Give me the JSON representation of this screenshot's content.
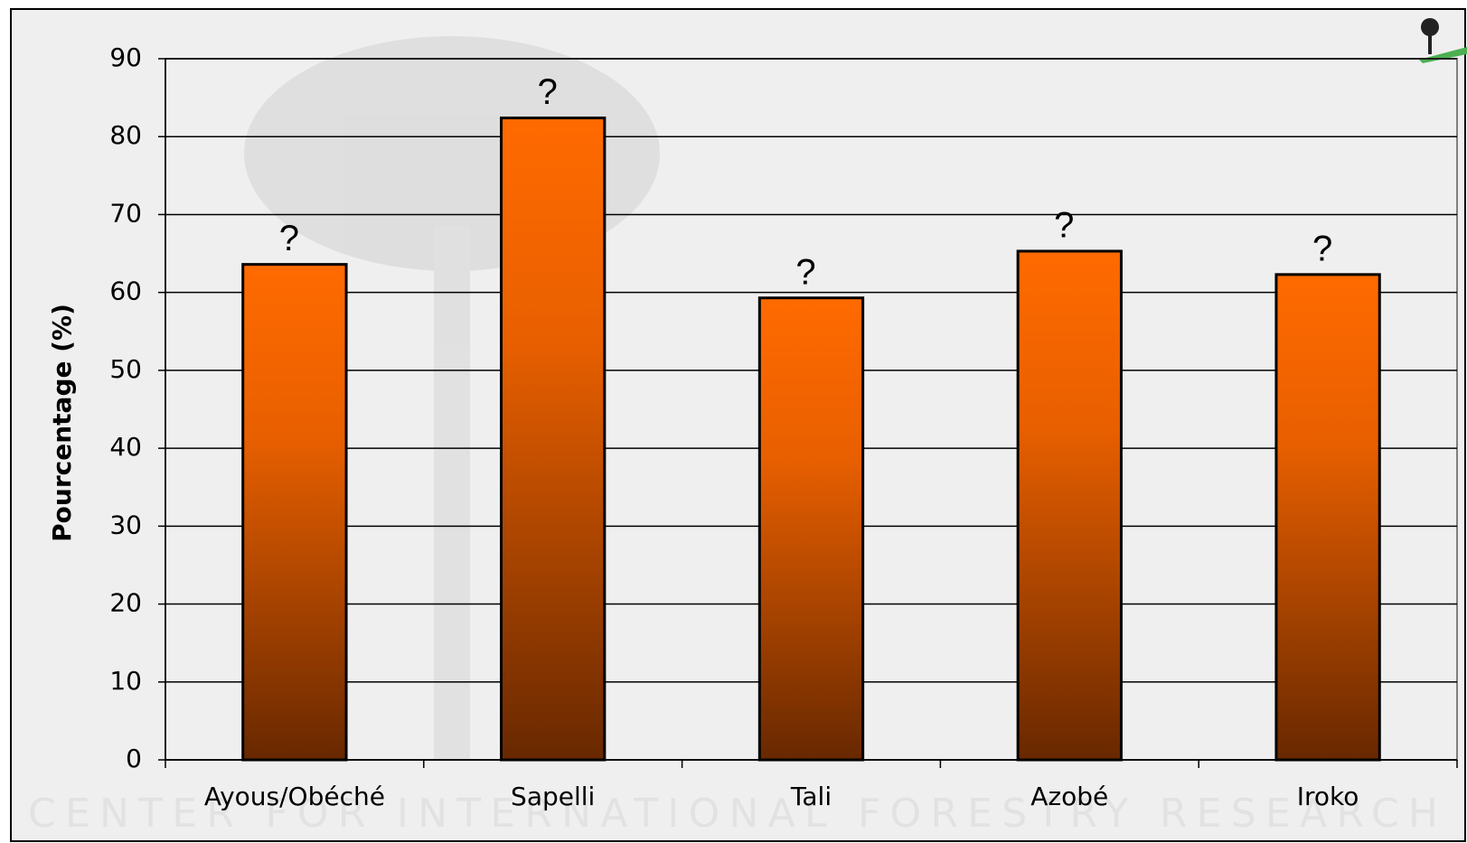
{
  "chart_data": {
    "type": "bar",
    "y_label": "Pourcentage (%)",
    "watermark": "CENTER FOR INTERNATIONAL FORESTRY RESEARCH",
    "categories": [
      "Ayous/Obéché",
      "Sapelli",
      "Tali",
      "Azobé",
      "Iroko"
    ],
    "values": [
      63.6,
      82.4,
      59.3,
      65.3,
      62.3
    ],
    "value_labels": [
      "?",
      "?",
      "?",
      "?",
      "?"
    ],
    "color": "#ff6a00",
    "ylim": [
      0,
      90
    ],
    "yticks": [
      0,
      10,
      20,
      30,
      40,
      50,
      60,
      70,
      80,
      90
    ],
    "grid": true
  }
}
